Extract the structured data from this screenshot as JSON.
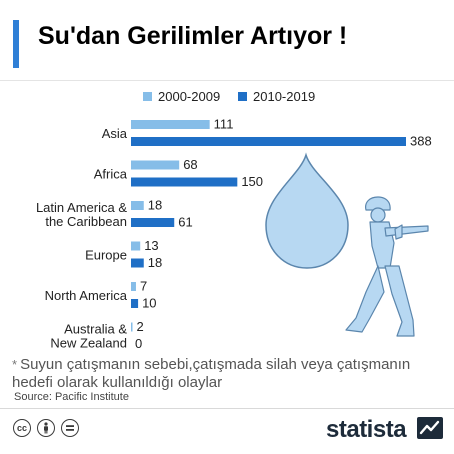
{
  "title": "Su'dan Gerilimler Artıyor !",
  "colors": {
    "series_2000_2009": "#86bde8",
    "series_2010_2019": "#1f6fc6",
    "accent": "#2f7fd6"
  },
  "chart_data": {
    "type": "bar",
    "orientation": "horizontal",
    "categories": [
      "Asia",
      "Africa",
      "Latin America & the Caribbean",
      "Europe",
      "North America",
      "Australia & New Zealand"
    ],
    "category_lines": [
      [
        "Asia"
      ],
      [
        "Africa"
      ],
      [
        "Latin America &",
        "the Caribbean"
      ],
      [
        "Europe"
      ],
      [
        "North America"
      ],
      [
        "Australia &",
        "New Zealand"
      ]
    ],
    "series": [
      {
        "name": "2000-2009",
        "values": [
          111,
          68,
          18,
          13,
          7,
          2
        ]
      },
      {
        "name": "2010-2019",
        "values": [
          388,
          150,
          61,
          18,
          10,
          0
        ]
      }
    ],
    "xlim": [
      0,
      388
    ],
    "grid": false,
    "legend_position": "top"
  },
  "footnote": "Suyun çatışmanın sebebi,çatışmada silah veya çatışmanın hedefi olarak kullanıldığı olaylar",
  "footnote_marker": "*",
  "source": "Source: Pacific Institute",
  "brand": "statista",
  "icons": [
    "creative-commons-icon",
    "attribution-icon",
    "no-derivatives-icon",
    "water-drop-icon",
    "soldier-silhouette-icon",
    "statista-logo-icon"
  ]
}
